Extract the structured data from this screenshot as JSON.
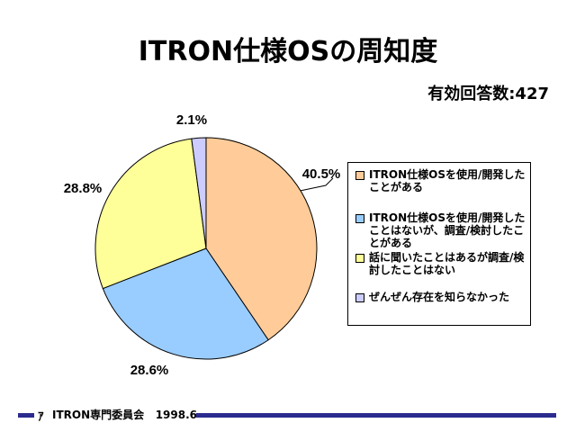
{
  "page": {
    "title": "ITRON仕様OSの周知度",
    "respondents": "有効回答数:427"
  },
  "footer": {
    "org": "ITRON専門委員会",
    "date": "1998.6"
  },
  "colors": {
    "slice1": "#ffcc99",
    "slice2": "#99ccff",
    "slice3": "#ffff99",
    "slice4": "#ccccff",
    "footer_bar": "#2b2b8f"
  },
  "chart_data": {
    "type": "pie",
    "title": "ITRON仕様OSの周知度",
    "categories": [
      "ITRON仕様OSを使用/開発したことがある",
      "ITRON仕様OSを使用/開発したことはないが、調査/検討したことがある",
      "話に聞いたことはあるが調査/検討したことはない",
      "ぜんぜん存在を知らなかった"
    ],
    "values": [
      40.5,
      28.6,
      28.8,
      2.1
    ],
    "labels": [
      "40.5%",
      "28.6%",
      "28.8%",
      "2.1%"
    ],
    "legend_position": "right"
  }
}
